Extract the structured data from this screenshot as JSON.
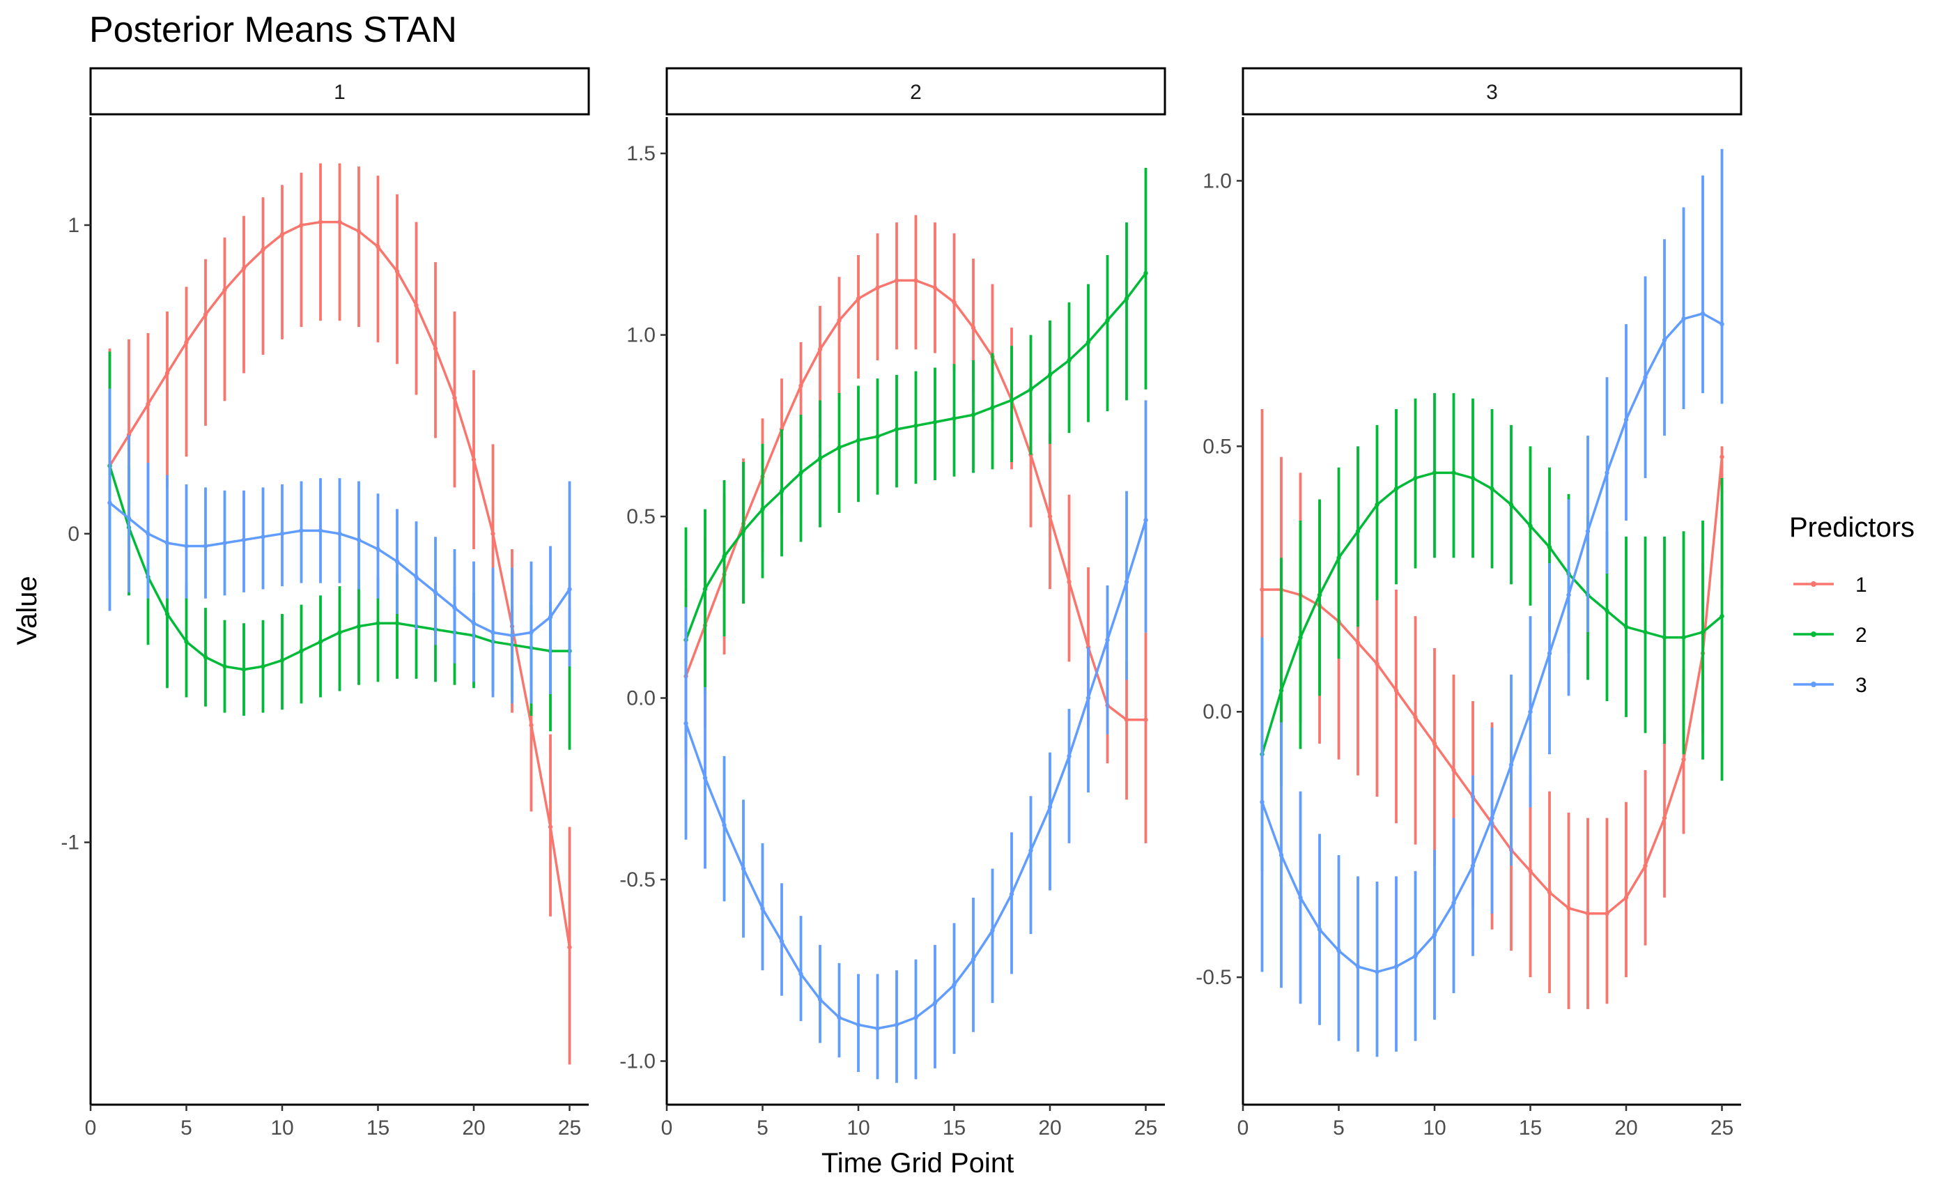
{
  "chart_data": {
    "type": "line",
    "title": "Posterior Means STAN",
    "xlabel": "Time Grid Point",
    "ylabel": "Value",
    "legend": {
      "title": "Predictors",
      "position": "right"
    },
    "grid": false,
    "colors": {
      "1": "#F8766D",
      "2": "#00BA38",
      "3": "#619CFF"
    },
    "x": [
      1,
      2,
      3,
      4,
      5,
      6,
      7,
      8,
      9,
      10,
      11,
      12,
      13,
      14,
      15,
      16,
      17,
      18,
      19,
      20,
      21,
      22,
      23,
      24,
      25
    ],
    "xlim": [
      0,
      26
    ],
    "xticks": [
      0,
      5,
      10,
      15,
      20,
      25
    ],
    "xtick_labels": [
      "0",
      "5",
      "10",
      "15",
      "20",
      "25"
    ],
    "facets": [
      {
        "label": "1",
        "ylim": [
          -1.85,
          1.35
        ],
        "yticks": [
          -1,
          0,
          1
        ],
        "ytick_labels": [
          "-1",
          "0",
          "1"
        ],
        "series": [
          {
            "name": "1",
            "values": [
              0.22,
              0.32,
              0.42,
              0.52,
              0.62,
              0.71,
              0.79,
              0.86,
              0.92,
              0.97,
              1.0,
              1.01,
              1.01,
              0.98,
              0.93,
              0.85,
              0.74,
              0.6,
              0.44,
              0.24,
              0.0,
              -0.3,
              -0.62,
              -0.95,
              -1.34
            ],
            "lower": [
              -0.15,
              -0.05,
              0.05,
              0.15,
              0.25,
              0.35,
              0.43,
              0.52,
              0.58,
              0.63,
              0.67,
              0.69,
              0.69,
              0.67,
              0.62,
              0.55,
              0.45,
              0.31,
              0.15,
              -0.05,
              -0.28,
              -0.58,
              -0.9,
              -1.24,
              -1.72
            ],
            "upper": [
              0.6,
              0.63,
              0.65,
              0.72,
              0.8,
              0.89,
              0.96,
              1.03,
              1.09,
              1.13,
              1.17,
              1.2,
              1.2,
              1.19,
              1.16,
              1.1,
              1.01,
              0.88,
              0.72,
              0.53,
              0.29,
              -0.05,
              -0.34,
              -0.65,
              -0.95
            ]
          },
          {
            "name": "2",
            "values": [
              0.22,
              0.02,
              -0.14,
              -0.26,
              -0.35,
              -0.4,
              -0.43,
              -0.44,
              -0.43,
              -0.41,
              -0.38,
              -0.35,
              -0.32,
              -0.3,
              -0.29,
              -0.29,
              -0.3,
              -0.31,
              -0.32,
              -0.33,
              -0.35,
              -0.36,
              -0.37,
              -0.38,
              -0.38
            ],
            "lower": [
              -0.15,
              -0.2,
              -0.36,
              -0.5,
              -0.53,
              -0.56,
              -0.58,
              -0.59,
              -0.58,
              -0.57,
              -0.55,
              -0.53,
              -0.51,
              -0.49,
              -0.48,
              -0.47,
              -0.47,
              -0.48,
              -0.49,
              -0.5,
              -0.51,
              -0.53,
              -0.59,
              -0.64,
              -0.7
            ],
            "upper": [
              0.59,
              0.22,
              0.08,
              -0.02,
              -0.16,
              -0.24,
              -0.28,
              -0.29,
              -0.28,
              -0.26,
              -0.23,
              -0.2,
              -0.17,
              -0.15,
              -0.14,
              -0.13,
              -0.14,
              -0.16,
              -0.17,
              -0.19,
              -0.21,
              -0.23,
              -0.23,
              -0.22,
              -0.24
            ]
          },
          {
            "name": "3",
            "values": [
              0.1,
              0.05,
              0.0,
              -0.03,
              -0.04,
              -0.04,
              -0.03,
              -0.02,
              -0.01,
              0.0,
              0.01,
              0.01,
              0.0,
              -0.02,
              -0.05,
              -0.09,
              -0.14,
              -0.19,
              -0.24,
              -0.29,
              -0.32,
              -0.33,
              -0.32,
              -0.27,
              -0.18
            ],
            "lower": [
              -0.25,
              -0.19,
              -0.21,
              -0.21,
              -0.21,
              -0.21,
              -0.2,
              -0.19,
              -0.18,
              -0.17,
              -0.16,
              -0.16,
              -0.16,
              -0.18,
              -0.21,
              -0.26,
              -0.31,
              -0.36,
              -0.42,
              -0.48,
              -0.53,
              -0.55,
              -0.55,
              -0.52,
              -0.43
            ],
            "upper": [
              0.47,
              0.32,
              0.23,
              0.19,
              0.16,
              0.15,
              0.14,
              0.14,
              0.15,
              0.16,
              0.17,
              0.18,
              0.18,
              0.17,
              0.13,
              0.08,
              0.04,
              -0.01,
              -0.05,
              -0.09,
              -0.11,
              -0.11,
              -0.09,
              -0.04,
              0.17
            ]
          }
        ]
      },
      {
        "label": "2",
        "ylim": [
          -1.12,
          1.6
        ],
        "yticks": [
          -1.0,
          -0.5,
          0.0,
          0.5,
          1.0,
          1.5
        ],
        "ytick_labels": [
          "-1.0",
          "-0.5",
          "0.0",
          "0.5",
          "1.0",
          "1.5"
        ],
        "series": [
          {
            "name": "1",
            "values": [
              0.06,
              0.2,
              0.34,
              0.48,
              0.61,
              0.74,
              0.86,
              0.96,
              1.04,
              1.1,
              1.13,
              1.15,
              1.15,
              1.13,
              1.09,
              1.02,
              0.94,
              0.82,
              0.67,
              0.5,
              0.32,
              0.14,
              -0.02,
              -0.06,
              -0.06
            ],
            "lower": [
              -0.18,
              -0.08,
              0.12,
              0.26,
              0.4,
              0.5,
              0.63,
              0.72,
              0.82,
              0.88,
              0.93,
              0.96,
              0.96,
              0.95,
              0.9,
              0.84,
              0.76,
              0.63,
              0.47,
              0.3,
              0.1,
              -0.08,
              -0.18,
              -0.28,
              -0.4
            ],
            "upper": [
              0.3,
              0.44,
              0.56,
              0.66,
              0.77,
              0.88,
              0.98,
              1.08,
              1.16,
              1.22,
              1.28,
              1.31,
              1.33,
              1.31,
              1.28,
              1.21,
              1.14,
              1.02,
              0.88,
              0.73,
              0.56,
              0.36,
              0.17,
              0.1,
              0.18
            ]
          },
          {
            "name": "2",
            "values": [
              0.16,
              0.3,
              0.39,
              0.46,
              0.52,
              0.57,
              0.62,
              0.66,
              0.69,
              0.71,
              0.72,
              0.74,
              0.75,
              0.76,
              0.77,
              0.78,
              0.8,
              0.82,
              0.85,
              0.89,
              0.93,
              0.98,
              1.04,
              1.1,
              1.17
            ],
            "lower": [
              -0.16,
              0.01,
              0.17,
              0.26,
              0.33,
              0.39,
              0.43,
              0.47,
              0.51,
              0.54,
              0.56,
              0.58,
              0.59,
              0.6,
              0.61,
              0.62,
              0.63,
              0.65,
              0.67,
              0.7,
              0.73,
              0.76,
              0.79,
              0.82,
              0.85
            ],
            "upper": [
              0.47,
              0.52,
              0.6,
              0.65,
              0.7,
              0.74,
              0.78,
              0.82,
              0.84,
              0.86,
              0.88,
              0.89,
              0.9,
              0.91,
              0.92,
              0.93,
              0.95,
              0.97,
              1.0,
              1.04,
              1.09,
              1.14,
              1.22,
              1.31,
              1.46
            ]
          },
          {
            "name": "3",
            "values": [
              -0.07,
              -0.22,
              -0.35,
              -0.47,
              -0.58,
              -0.67,
              -0.76,
              -0.83,
              -0.88,
              -0.9,
              -0.91,
              -0.9,
              -0.88,
              -0.84,
              -0.79,
              -0.72,
              -0.64,
              -0.54,
              -0.42,
              -0.3,
              -0.16,
              0.0,
              0.16,
              0.32,
              0.49
            ],
            "lower": [
              -0.39,
              -0.47,
              -0.56,
              -0.66,
              -0.75,
              -0.82,
              -0.89,
              -0.95,
              -0.99,
              -1.03,
              -1.05,
              -1.06,
              -1.05,
              -1.02,
              -0.98,
              -0.92,
              -0.84,
              -0.76,
              -0.65,
              -0.53,
              -0.4,
              -0.26,
              -0.1,
              0.05,
              0.18
            ],
            "upper": [
              0.25,
              0.03,
              -0.16,
              -0.28,
              -0.4,
              -0.51,
              -0.6,
              -0.68,
              -0.73,
              -0.76,
              -0.76,
              -0.75,
              -0.72,
              -0.68,
              -0.62,
              -0.55,
              -0.47,
              -0.37,
              -0.27,
              -0.15,
              -0.03,
              0.14,
              0.31,
              0.57,
              0.82
            ]
          }
        ]
      },
      {
        "label": "3",
        "ylim": [
          -0.74,
          1.12
        ],
        "yticks": [
          -0.5,
          0.0,
          0.5,
          1.0
        ],
        "ytick_labels": [
          "-0.5",
          "0.0",
          "0.5",
          "1.0"
        ],
        "series": [
          {
            "name": "1",
            "values": [
              0.23,
              0.23,
              0.22,
              0.2,
              0.17,
              0.13,
              0.09,
              0.04,
              -0.01,
              -0.06,
              -0.11,
              -0.16,
              -0.21,
              -0.26,
              -0.3,
              -0.34,
              -0.37,
              -0.38,
              -0.38,
              -0.35,
              -0.29,
              -0.2,
              -0.09,
              0.11,
              0.48
            ],
            "lower": [
              -0.11,
              -0.03,
              -0.02,
              -0.06,
              -0.09,
              -0.12,
              -0.16,
              -0.21,
              -0.25,
              -0.29,
              -0.33,
              -0.37,
              -0.41,
              -0.45,
              -0.5,
              -0.53,
              -0.56,
              -0.56,
              -0.55,
              -0.5,
              -0.44,
              -0.35,
              -0.23,
              -0.04,
              0.23
            ],
            "upper": [
              0.57,
              0.48,
              0.45,
              0.4,
              0.34,
              0.3,
              0.25,
              0.23,
              0.18,
              0.12,
              0.07,
              0.02,
              -0.02,
              -0.07,
              -0.12,
              -0.15,
              -0.19,
              -0.2,
              -0.2,
              -0.17,
              -0.11,
              -0.04,
              0.08,
              0.28,
              0.5
            ]
          },
          {
            "name": "2",
            "values": [
              -0.08,
              0.04,
              0.14,
              0.22,
              0.29,
              0.34,
              0.39,
              0.42,
              0.44,
              0.45,
              0.45,
              0.44,
              0.42,
              0.39,
              0.35,
              0.31,
              0.26,
              0.22,
              0.19,
              0.16,
              0.15,
              0.14,
              0.14,
              0.15,
              0.18
            ],
            "lower": [
              -0.3,
              -0.14,
              -0.07,
              0.03,
              0.1,
              0.16,
              0.21,
              0.24,
              0.27,
              0.29,
              0.29,
              0.29,
              0.27,
              0.24,
              0.2,
              0.15,
              0.11,
              0.06,
              0.02,
              -0.01,
              -0.04,
              -0.06,
              -0.08,
              -0.09,
              -0.13
            ],
            "upper": [
              0.14,
              0.29,
              0.36,
              0.4,
              0.46,
              0.5,
              0.54,
              0.57,
              0.59,
              0.6,
              0.6,
              0.59,
              0.57,
              0.54,
              0.5,
              0.46,
              0.41,
              0.37,
              0.34,
              0.33,
              0.33,
              0.33,
              0.34,
              0.36,
              0.44
            ]
          },
          {
            "name": "3",
            "values": [
              -0.17,
              -0.27,
              -0.35,
              -0.41,
              -0.45,
              -0.48,
              -0.49,
              -0.48,
              -0.46,
              -0.42,
              -0.36,
              -0.29,
              -0.2,
              -0.1,
              0.0,
              0.11,
              0.22,
              0.34,
              0.45,
              0.55,
              0.63,
              0.7,
              0.74,
              0.75,
              0.73
            ],
            "lower": [
              -0.49,
              -0.52,
              -0.55,
              -0.59,
              -0.62,
              -0.64,
              -0.65,
              -0.64,
              -0.62,
              -0.58,
              -0.53,
              -0.46,
              -0.38,
              -0.29,
              -0.18,
              -0.08,
              0.03,
              0.15,
              0.26,
              0.36,
              0.44,
              0.52,
              0.57,
              0.6,
              0.58
            ],
            "upper": [
              0.14,
              -0.02,
              -0.15,
              -0.23,
              -0.27,
              -0.31,
              -0.32,
              -0.31,
              -0.3,
              -0.26,
              -0.2,
              -0.12,
              -0.03,
              0.07,
              0.18,
              0.28,
              0.4,
              0.52,
              0.63,
              0.73,
              0.82,
              0.89,
              0.95,
              1.01,
              1.06
            ]
          }
        ]
      }
    ]
  }
}
